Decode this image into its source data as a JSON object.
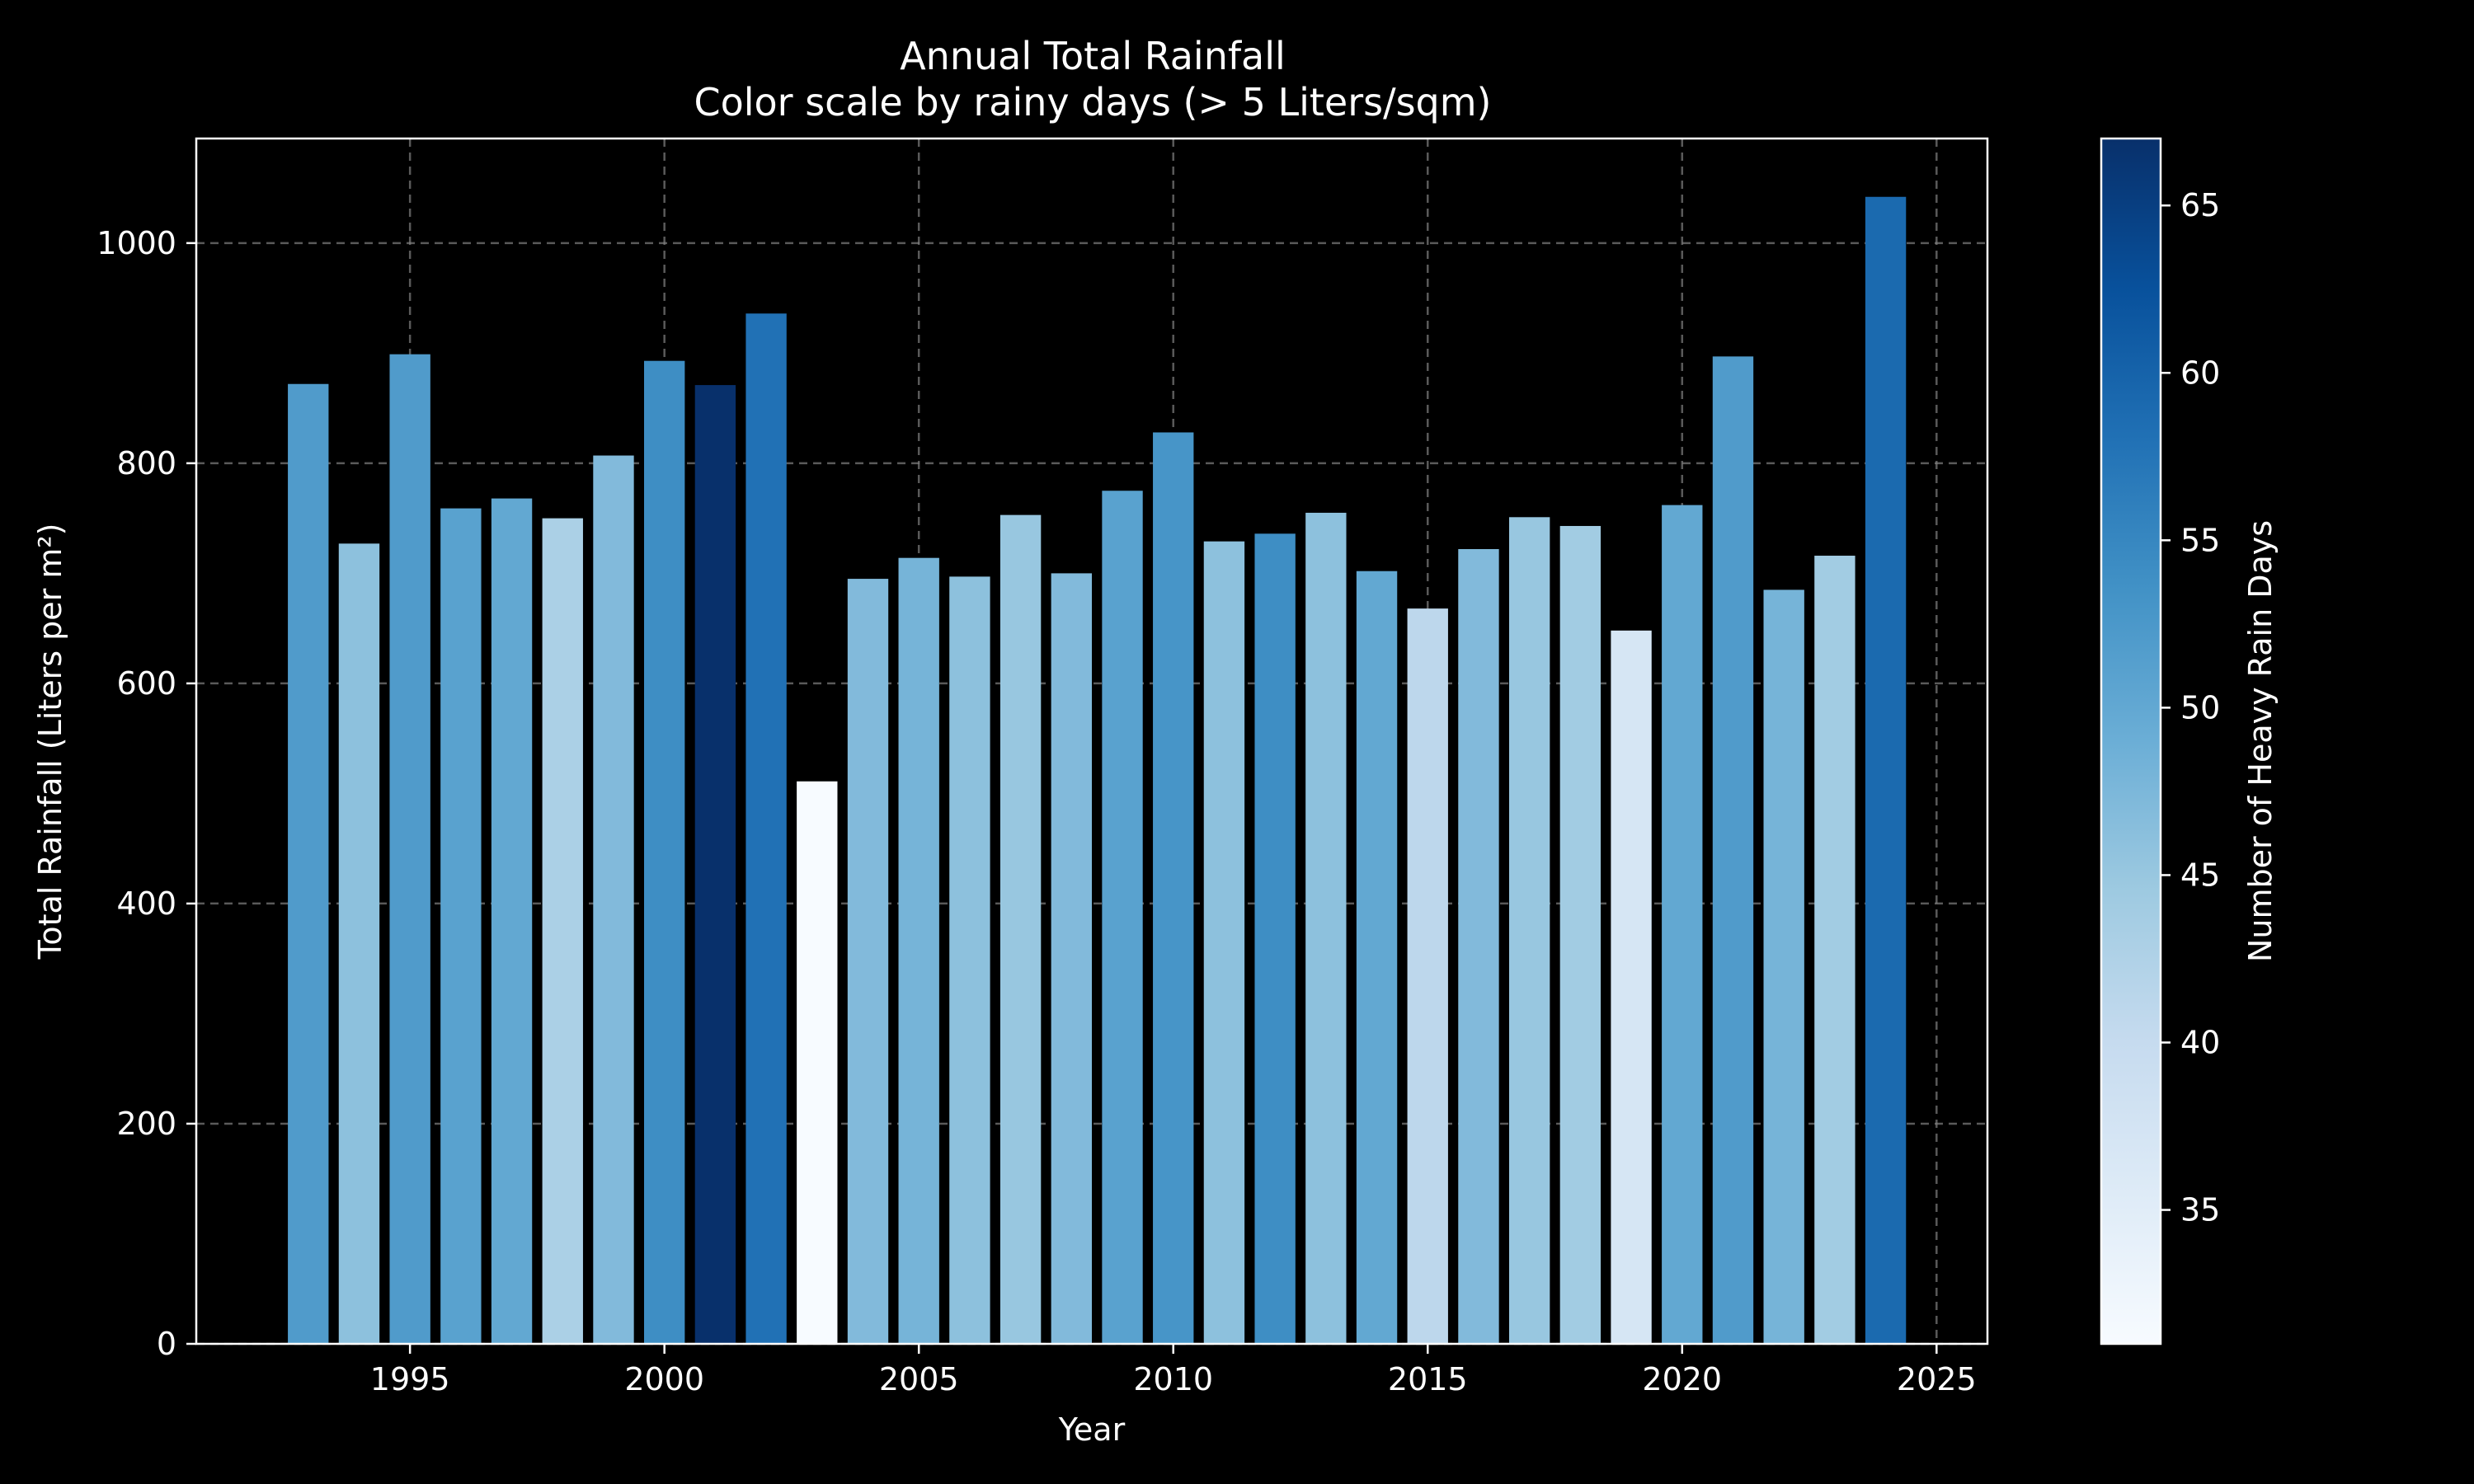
{
  "chart_data": {
    "type": "bar",
    "title": "Annual Total Rainfall",
    "subtitle": "Color scale by rainy days (> 5 Liters/sqm)",
    "xlabel": "Year",
    "ylabel": "Total Rainfall (Liters per m²)",
    "xlim": [
      1990.8,
      2026.0
    ],
    "ylim": [
      0,
      1095
    ],
    "xticks": [
      1995,
      2000,
      2005,
      2010,
      2015,
      2020,
      2025
    ],
    "yticks": [
      0,
      200,
      400,
      600,
      800,
      1000
    ],
    "grid": true,
    "background_color": "#000000",
    "x": [
      1993,
      1994,
      1995,
      1996,
      1997,
      1998,
      1999,
      2000,
      2001,
      2002,
      2003,
      2004,
      2005,
      2006,
      2007,
      2008,
      2009,
      2010,
      2011,
      2012,
      2013,
      2014,
      2015,
      2016,
      2017,
      2018,
      2019,
      2020,
      2021,
      2022,
      2023,
      2024
    ],
    "values": [
      872,
      727,
      899,
      759,
      768,
      750,
      807,
      893,
      871,
      936,
      511,
      695,
      714,
      697,
      753,
      700,
      775,
      828,
      729,
      736,
      755,
      702,
      668,
      722,
      751,
      743,
      648,
      762,
      897,
      685,
      716,
      1042
    ],
    "heavy_rain_days": [
      52,
      46,
      52,
      51,
      50,
      43,
      47,
      54,
      67,
      58,
      31,
      47,
      48,
      46,
      45,
      47,
      51,
      53,
      46,
      54,
      46,
      50,
      41,
      47,
      45,
      44,
      37,
      50,
      52,
      48,
      44,
      59
    ],
    "colorbar": {
      "label": "Number of Heavy Rain Days",
      "min": 31,
      "max": 67,
      "ticks": [
        35,
        40,
        45,
        50,
        55,
        60,
        65
      ],
      "colormap": "Blues"
    }
  }
}
